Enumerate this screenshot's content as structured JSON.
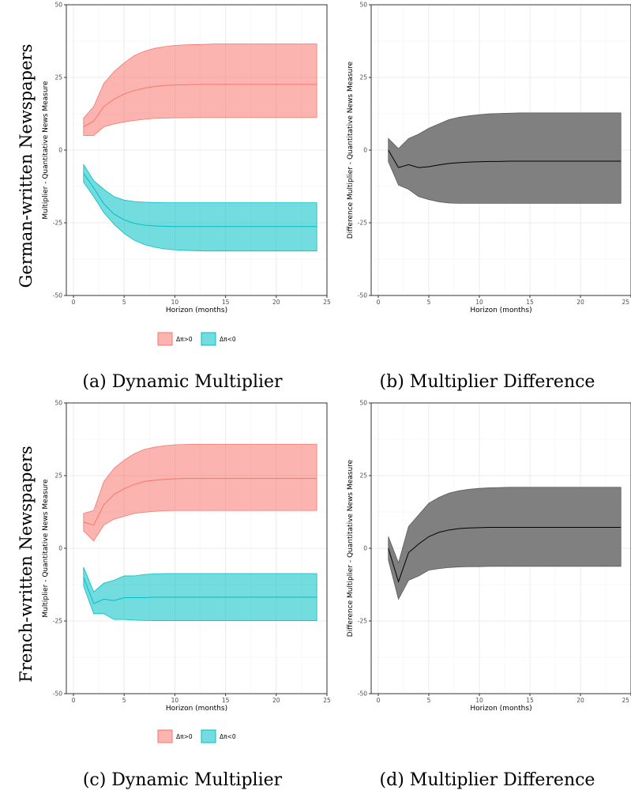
{
  "row_labels": [
    "German-written Newspapers",
    "French-written Newspapers"
  ],
  "legend": [
    {
      "label": "Δπ>0",
      "color": "#F8766D"
    },
    {
      "label": "Δπ<0",
      "color": "#00BFC4"
    }
  ],
  "chart_data": [
    {
      "type": "area",
      "caption": "(a) Dynamic Multiplier",
      "xlabel": "Horizon (months)",
      "ylabel": "Multiplier - Quantitative News Measure",
      "xlim": [
        0,
        25
      ],
      "ylim": [
        -50,
        50
      ],
      "xticks": [
        0,
        5,
        10,
        15,
        20,
        25
      ],
      "yticks": [
        -50,
        -25,
        0,
        25,
        50
      ],
      "grid": true,
      "x": [
        1,
        2,
        3,
        4,
        5,
        6,
        7,
        8,
        9,
        10,
        11,
        12,
        13,
        14,
        15,
        16,
        17,
        18,
        19,
        20,
        21,
        22,
        23,
        24
      ],
      "series": [
        {
          "name": "Δπ>0",
          "color": "#F8766D",
          "lower": [
            5,
            5,
            8,
            9,
            9.7,
            10.2,
            10.6,
            10.9,
            11,
            11.1,
            11.1,
            11.2,
            11.2,
            11.2,
            11.2,
            11.2,
            11.2,
            11.2,
            11.2,
            11.2,
            11.2,
            11.2,
            11.2,
            11.2
          ],
          "mid": [
            8,
            10,
            15,
            17.5,
            19.3,
            20.5,
            21.3,
            21.9,
            22.2,
            22.4,
            22.5,
            22.6,
            22.6,
            22.6,
            22.6,
            22.6,
            22.6,
            22.6,
            22.6,
            22.6,
            22.6,
            22.6,
            22.6,
            22.6
          ],
          "upper": [
            11,
            15,
            23,
            27,
            30,
            32.5,
            34,
            35,
            35.6,
            36,
            36.2,
            36.3,
            36.4,
            36.5,
            36.5,
            36.5,
            36.5,
            36.5,
            36.5,
            36.5,
            36.5,
            36.5,
            36.5,
            36.5
          ]
        },
        {
          "name": "Δπ<0",
          "color": "#00BFC4",
          "lower": [
            -11,
            -16,
            -21.5,
            -25.5,
            -28.7,
            -31,
            -32.5,
            -33.4,
            -34,
            -34.3,
            -34.5,
            -34.6,
            -34.7,
            -34.7,
            -34.7,
            -34.7,
            -34.7,
            -34.7,
            -34.7,
            -34.7,
            -34.7,
            -34.7,
            -34.7,
            -34.7
          ],
          "mid": [
            -8,
            -13,
            -18.5,
            -22,
            -24,
            -25.2,
            -25.8,
            -26.1,
            -26.2,
            -26.3,
            -26.3,
            -26.3,
            -26.3,
            -26.3,
            -26.3,
            -26.3,
            -26.3,
            -26.3,
            -26.3,
            -26.3,
            -26.3,
            -26.3,
            -26.3,
            -26.3
          ],
          "upper": [
            -5,
            -10.5,
            -13.5,
            -16,
            -17.2,
            -17.7,
            -17.9,
            -18,
            -18.1,
            -18.1,
            -18.1,
            -18.1,
            -18.1,
            -18.1,
            -18.1,
            -18.1,
            -18.1,
            -18.1,
            -18.1,
            -18.1,
            -18.1,
            -18.1,
            -18.1,
            -18.1
          ]
        }
      ]
    },
    {
      "type": "area",
      "caption": "(b) Multiplier Difference",
      "xlabel": "Horizon (months)",
      "ylabel": "Difference Multiplier - Quantitative News Measure",
      "xlim": [
        0,
        25
      ],
      "ylim": [
        -50,
        50
      ],
      "xticks": [
        0,
        5,
        10,
        15,
        20,
        25
      ],
      "yticks": [
        -50,
        -25,
        0,
        25,
        50
      ],
      "grid": true,
      "x": [
        1,
        2,
        3,
        4,
        5,
        6,
        7,
        8,
        9,
        10,
        11,
        12,
        13,
        14,
        15,
        16,
        17,
        18,
        19,
        20,
        21,
        22,
        23,
        24
      ],
      "series": [
        {
          "color": "#808080",
          "lower": [
            -4,
            -12,
            -13.5,
            -16,
            -17,
            -17.8,
            -18.2,
            -18.3,
            -18.3,
            -18.3,
            -18.3,
            -18.3,
            -18.3,
            -18.3,
            -18.3,
            -18.3,
            -18.3,
            -18.3,
            -18.3,
            -18.3,
            -18.3,
            -18.3,
            -18.3,
            -18.3
          ],
          "mid": [
            0,
            -6,
            -5,
            -6,
            -5.7,
            -5.1,
            -4.6,
            -4.3,
            -4.1,
            -4,
            -3.9,
            -3.9,
            -3.8,
            -3.8,
            -3.8,
            -3.8,
            -3.8,
            -3.8,
            -3.8,
            -3.8,
            -3.8,
            -3.8,
            -3.8,
            -3.8
          ],
          "upper": [
            4,
            0.5,
            4,
            5.5,
            7.5,
            9,
            10.5,
            11.3,
            11.8,
            12.2,
            12.5,
            12.6,
            12.7,
            12.8,
            12.8,
            12.8,
            12.8,
            12.8,
            12.8,
            12.8,
            12.8,
            12.8,
            12.8,
            12.8
          ]
        }
      ]
    },
    {
      "type": "area",
      "caption": "(c) Dynamic Multiplier",
      "xlabel": "Horizon (months)",
      "ylabel": "Multiplier - Quantitative News Measure",
      "xlim": [
        0,
        25
      ],
      "ylim": [
        -50,
        50
      ],
      "xticks": [
        0,
        5,
        10,
        15,
        20,
        25
      ],
      "yticks": [
        -50,
        -25,
        0,
        25,
        50
      ],
      "grid": true,
      "x": [
        1,
        2,
        3,
        4,
        5,
        6,
        7,
        8,
        9,
        10,
        11,
        12,
        13,
        14,
        15,
        16,
        17,
        18,
        19,
        20,
        21,
        22,
        23,
        24
      ],
      "series": [
        {
          "name": "Δπ>0",
          "color": "#F8766D",
          "lower": [
            6,
            2.5,
            8,
            10,
            11,
            12,
            12.4,
            12.7,
            12.9,
            13,
            13,
            13,
            13,
            13,
            13,
            13,
            13,
            13,
            13,
            13,
            13,
            13,
            13,
            13
          ],
          "mid": [
            9,
            8,
            15,
            18.5,
            20.5,
            22,
            23,
            23.4,
            23.7,
            23.9,
            24,
            24,
            24,
            24,
            24,
            24,
            24,
            24,
            24,
            24,
            24,
            24,
            24,
            24
          ],
          "upper": [
            12,
            13,
            23,
            27.5,
            30.3,
            32.5,
            34,
            34.8,
            35.3,
            35.6,
            35.7,
            35.8,
            35.8,
            35.8,
            35.8,
            35.8,
            35.8,
            35.8,
            35.8,
            35.8,
            35.8,
            35.8,
            35.8,
            35.8
          ]
        },
        {
          "name": "Δπ<0",
          "color": "#00BFC4",
          "lower": [
            -13,
            -22.5,
            -22.5,
            -24.5,
            -24.5,
            -24.7,
            -24.8,
            -24.9,
            -24.9,
            -24.9,
            -24.9,
            -24.9,
            -24.9,
            -24.9,
            -24.9,
            -24.9,
            -24.9,
            -24.9,
            -24.9,
            -24.9,
            -24.9,
            -24.9,
            -24.9,
            -24.9
          ],
          "mid": [
            -10,
            -19,
            -17.5,
            -18,
            -17,
            -17,
            -17,
            -16.8,
            -16.8,
            -16.8,
            -16.8,
            -16.8,
            -16.8,
            -16.8,
            -16.8,
            -16.8,
            -16.8,
            -16.8,
            -16.8,
            -16.8,
            -16.8,
            -16.8,
            -16.8,
            -16.8
          ],
          "upper": [
            -6.5,
            -15,
            -12,
            -11,
            -9.5,
            -9.5,
            -9,
            -8.8,
            -8.7,
            -8.7,
            -8.7,
            -8.7,
            -8.7,
            -8.7,
            -8.7,
            -8.7,
            -8.7,
            -8.7,
            -8.7,
            -8.7,
            -8.7,
            -8.7,
            -8.7,
            -8.7
          ]
        }
      ]
    },
    {
      "type": "area",
      "caption": "(d) Multiplier Difference",
      "xlabel": "Horizon (months)",
      "ylabel": "Difference Multiplier - Quantitative News Measure",
      "xlim": [
        0,
        25
      ],
      "ylim": [
        -50,
        50
      ],
      "xticks": [
        0,
        5,
        10,
        15,
        20,
        25
      ],
      "yticks": [
        -50,
        -25,
        0,
        25,
        50
      ],
      "grid": true,
      "x": [
        1,
        2,
        3,
        4,
        5,
        6,
        7,
        8,
        9,
        10,
        11,
        12,
        13,
        14,
        15,
        16,
        17,
        18,
        19,
        20,
        21,
        22,
        23,
        24
      ],
      "series": [
        {
          "color": "#808080",
          "lower": [
            -4,
            -17.5,
            -11,
            -9.5,
            -7.5,
            -7,
            -6.6,
            -6.4,
            -6.3,
            -6.3,
            -6.2,
            -6.2,
            -6.2,
            -6.2,
            -6.2,
            -6.2,
            -6.2,
            -6.2,
            -6.2,
            -6.2,
            -6.2,
            -6.2,
            -6.2,
            -6.2
          ],
          "mid": [
            0,
            -11.5,
            -1.5,
            1.5,
            4,
            5.5,
            6.3,
            6.8,
            7,
            7.1,
            7.2,
            7.2,
            7.2,
            7.2,
            7.2,
            7.2,
            7.2,
            7.2,
            7.2,
            7.2,
            7.2,
            7.2,
            7.2,
            7.2
          ],
          "upper": [
            4,
            -5,
            7.5,
            11.5,
            15.5,
            17.5,
            19,
            19.8,
            20.3,
            20.6,
            20.8,
            20.9,
            21,
            21,
            21,
            21,
            21,
            21,
            21,
            21,
            21,
            21,
            21,
            21
          ]
        }
      ]
    }
  ]
}
